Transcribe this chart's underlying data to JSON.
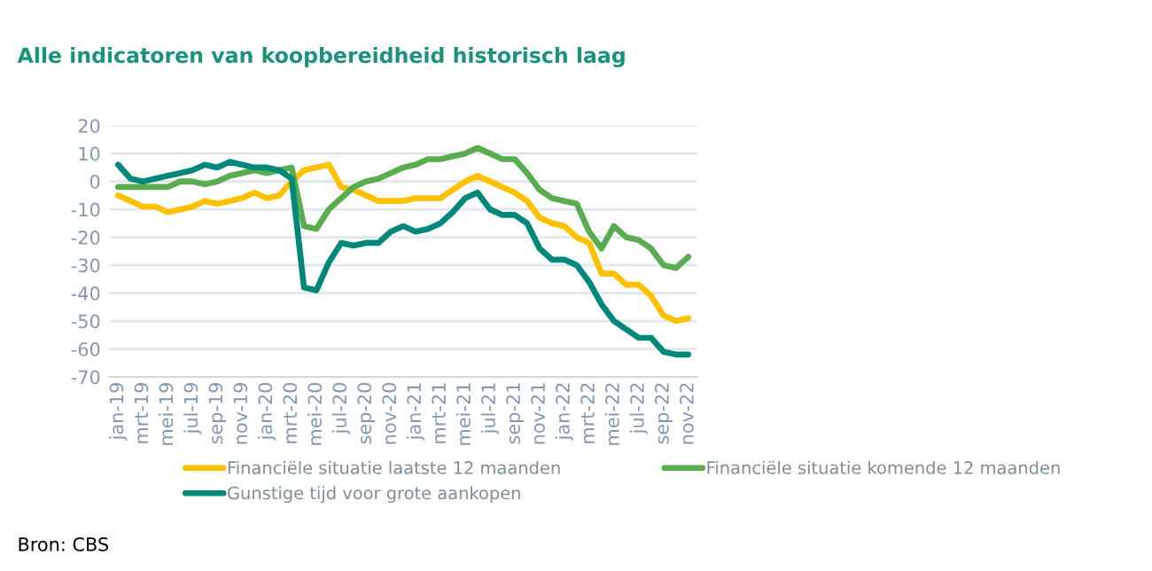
{
  "chart_data": {
    "type": "line",
    "title": "Alle indicatoren van koopbereidheid historisch laag",
    "categories": [
      "jan-19",
      null,
      "mrt-19",
      null,
      "mei-19",
      null,
      "jul-19",
      null,
      "sep-19",
      null,
      "nov-19",
      null,
      "jan-20",
      null,
      "mrt-20",
      null,
      "mei-20",
      null,
      "jul-20",
      null,
      "sep-20",
      null,
      "nov-20",
      null,
      "jan-21",
      null,
      "mrt-21",
      null,
      "mei-21",
      null,
      "jul-21",
      null,
      "sep-21",
      null,
      "nov-21",
      null,
      "jan-22",
      null,
      "mrt-22",
      null,
      "mei-22",
      null,
      "jul-22",
      null,
      "sep-22",
      null,
      "nov-22"
    ],
    "series": [
      {
        "name": "Financiële situatie laatste 12 maanden",
        "color": "#ffc000",
        "values": [
          -5,
          -7,
          -9,
          -9,
          -11,
          -10,
          -9,
          -7,
          -8,
          -7,
          -6,
          -4,
          -6,
          -5,
          0,
          4,
          5,
          6,
          -2,
          -3,
          -5,
          -7,
          -7,
          -7,
          -6,
          -6,
          -6,
          -3,
          0,
          2,
          0,
          -2,
          -4,
          -7,
          -13,
          -15,
          -16,
          -20,
          -22,
          -33,
          -33,
          -37,
          -37,
          -41,
          -48,
          -50,
          -49
        ]
      },
      {
        "name": "Financiële situatie komende 12 maanden",
        "color": "#5aad4e",
        "values": [
          -2,
          -2,
          -2,
          -2,
          -2,
          0,
          0,
          -1,
          0,
          2,
          3,
          4,
          3,
          4,
          5,
          -16,
          -17,
          -10,
          -6,
          -2,
          0,
          1,
          3,
          5,
          6,
          8,
          8,
          9,
          10,
          12,
          10,
          8,
          8,
          3,
          -3,
          -6,
          -7,
          -8,
          -18,
          -24,
          -16,
          -20,
          -21,
          -24,
          -30,
          -31,
          -27
        ]
      },
      {
        "name": "Gunstige tijd voor grote aankopen",
        "color": "#00897b",
        "values": [
          6,
          1,
          0,
          1,
          2,
          3,
          4,
          6,
          5,
          7,
          6,
          5,
          5,
          4,
          1,
          -38,
          -39,
          -29,
          -22,
          -23,
          -22,
          -22,
          -18,
          -16,
          -18,
          -17,
          -15,
          -11,
          -6,
          -4,
          -10,
          -12,
          -12,
          -15,
          -24,
          -28,
          -28,
          -30,
          -36,
          -44,
          -50,
          -53,
          -56,
          -56,
          -61,
          -62,
          -62
        ]
      }
    ],
    "ylim": [
      -70,
      20
    ],
    "yticks": [
      -70,
      -60,
      -50,
      -40,
      -30,
      -20,
      -10,
      0,
      10,
      20
    ],
    "grid": "y",
    "legend": "bottom",
    "marker": "none",
    "line_style": "solid",
    "annotations": [
      "Bron: CBS"
    ]
  }
}
